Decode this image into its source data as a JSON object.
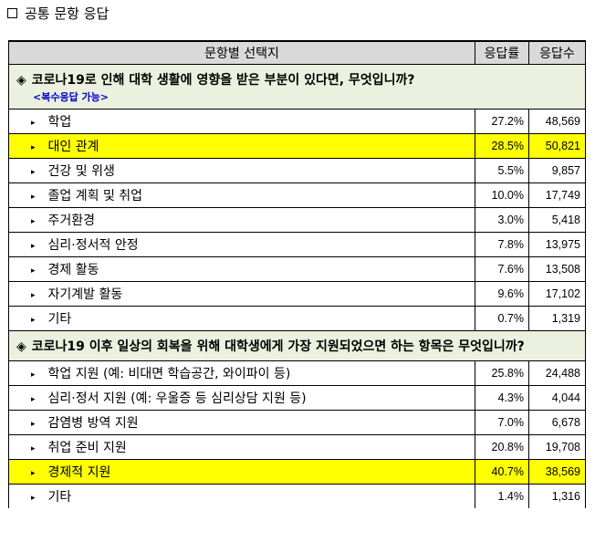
{
  "heading": {
    "checkbox_icon": "empty-square-icon",
    "text": "공통 문항 응답"
  },
  "table": {
    "headers": {
      "label": "문항별 선택지",
      "rate": "응답률",
      "count": "응답수"
    },
    "highlight_color": "#ffff00",
    "question_bg": "#ebf1de",
    "questions": [
      {
        "marker": "◈",
        "text": "코로나19로 인해 대학 생활에 영향을 받은 부분이 있다면, 무엇입니까?",
        "note": "<복수응답 가능>",
        "options": [
          {
            "bullet": "▸",
            "label": "학업",
            "rate": "27.2%",
            "count": "48,569"
          },
          {
            "bullet": "▸",
            "label": "대인 관계",
            "rate": "28.5%",
            "count": "50,821",
            "highlight": true
          },
          {
            "bullet": "▸",
            "label": "건강 및 위생",
            "rate": "5.5%",
            "count": "9,857"
          },
          {
            "bullet": "▸",
            "label": "졸업 계획 및 취업",
            "rate": "10.0%",
            "count": "17,749"
          },
          {
            "bullet": "▸",
            "label": "주거환경",
            "rate": "3.0%",
            "count": "5,418"
          },
          {
            "bullet": "▸",
            "label": "심리·정서적 안정",
            "rate": "7.8%",
            "count": "13,975"
          },
          {
            "bullet": "▸",
            "label": "경제 활동",
            "rate": "7.6%",
            "count": "13,508"
          },
          {
            "bullet": "▸",
            "label": "자기계발 활동",
            "rate": "9.6%",
            "count": "17,102"
          },
          {
            "bullet": "▸",
            "label": "기타",
            "rate": "0.7%",
            "count": "1,319"
          }
        ]
      },
      {
        "marker": "◈",
        "text": "코로나19 이후 일상의 회복을 위해 대학생에게 가장 지원되었으면 하는 항목은 무엇입니까?",
        "note": "",
        "options": [
          {
            "bullet": "▸",
            "label": "학업 지원 (예: 비대면 학습공간, 와이파이 등)",
            "rate": "25.8%",
            "count": "24,488"
          },
          {
            "bullet": "▸",
            "label": "심리·정서 지원 (예: 우울증 등 심리상담 지원 등)",
            "rate": "4.3%",
            "count": "4,044"
          },
          {
            "bullet": "▸",
            "label": "감염병 방역 지원",
            "rate": "7.0%",
            "count": "6,678"
          },
          {
            "bullet": "▸",
            "label": "취업 준비 지원",
            "rate": "20.8%",
            "count": "19,708"
          },
          {
            "bullet": "▸",
            "label": "경제적 지원",
            "rate": "40.7%",
            "count": "38,569",
            "highlight": true
          },
          {
            "bullet": "▸",
            "label": "기타",
            "rate": "1.4%",
            "count": "1,316"
          }
        ]
      }
    ]
  }
}
